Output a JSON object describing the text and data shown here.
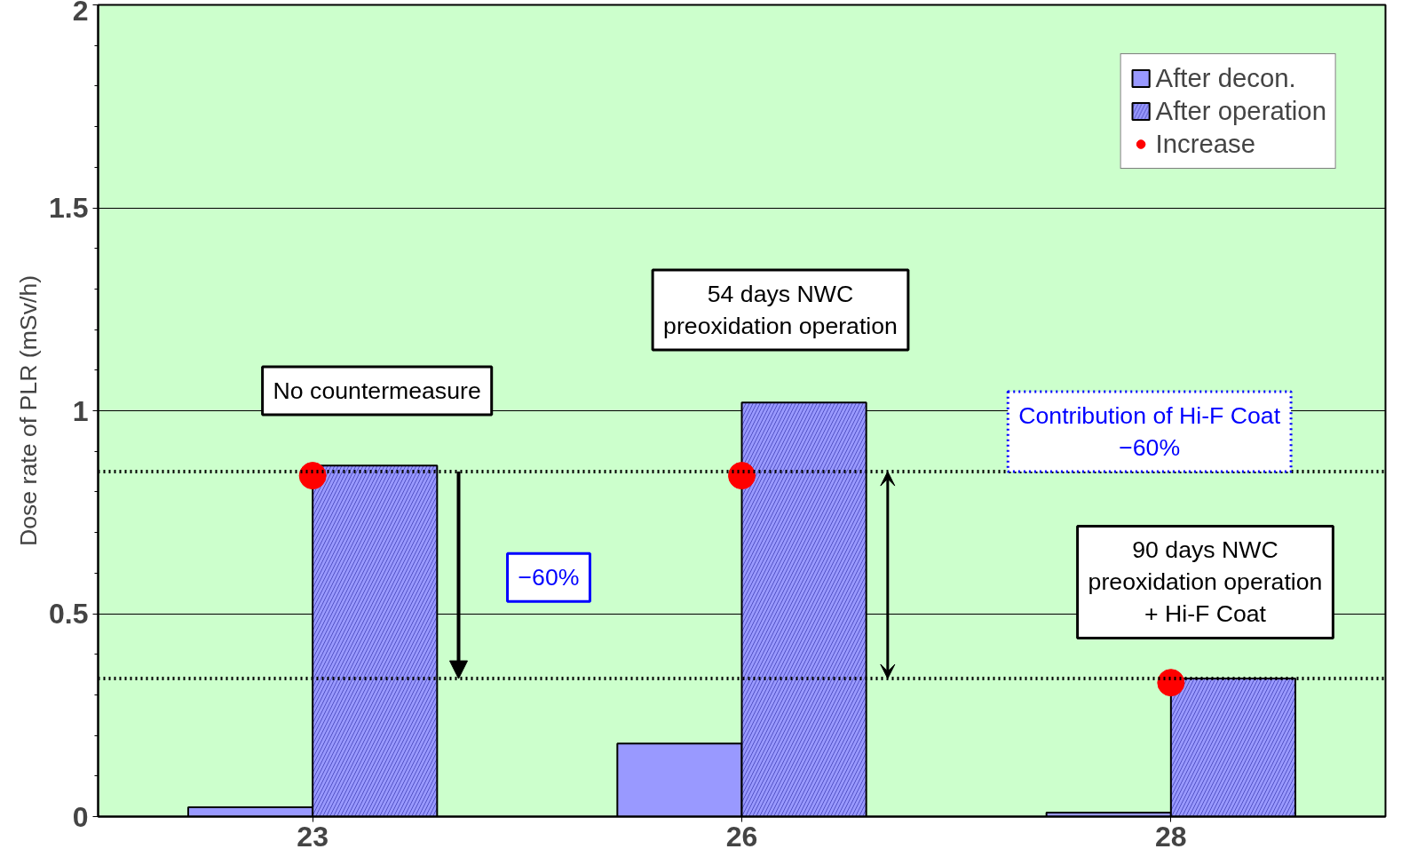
{
  "chart_data": {
    "type": "bar",
    "ylabel": "Dose rate of PLR (mSv/h)",
    "categories": [
      "23",
      "26",
      "28"
    ],
    "series": [
      {
        "name": "After decon.",
        "color": "#9999ff",
        "values": [
          0.023,
          0.18,
          0.01
        ]
      },
      {
        "name": "After operation",
        "color": "#9999ff",
        "values": [
          0.865,
          1.02,
          0.34
        ]
      },
      {
        "name": "Increase",
        "type": "scatter",
        "color": "#ff0000",
        "x": [
          "23",
          "26",
          "28"
        ],
        "values": [
          0.84,
          0.84,
          0.33
        ]
      }
    ],
    "ylim": [
      0,
      2
    ],
    "yticks": [
      0,
      0.5,
      1,
      1.5,
      2
    ],
    "grid": "y",
    "legend": "top right",
    "marker": "circle",
    "ref_lines": [
      {
        "axis": "y",
        "value": 0.85,
        "line_style": "dotted",
        "color": "#000000"
      },
      {
        "axis": "y",
        "value": 0.34,
        "line_style": "dotted",
        "color": "#000000"
      }
    ],
    "annotations": [
      "No countermeasure",
      "54 days NWC\npreoxidation operation",
      "−60%",
      "Contribution of Hi-F Coat\n−60%",
      "90 days NWC\npreoxidation operation\n+ Hi-F Coat"
    ]
  }
}
